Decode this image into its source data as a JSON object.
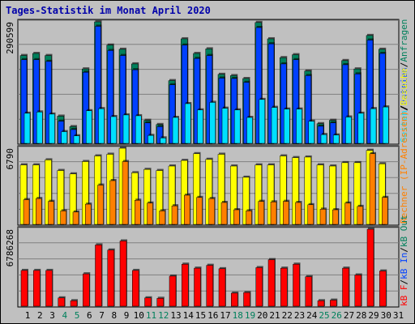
{
  "title": "Tages-Statistik im Monat April 2020",
  "legend": {
    "hits": "Anfragen",
    "files": "Dateien",
    "pages": "Seiten",
    "visits": "Besuche",
    "sites": "Rechner (IP-Adressen)",
    "kb_out": "kB Out",
    "kb_in": "kB In",
    "kb_f": "kB F",
    "sep": "/"
  },
  "colors": {
    "bg": "#c0c0c0",
    "grid": "#808080",
    "hits": "#00805c",
    "files": "#0040ff",
    "pages": "#00e0ff",
    "visits": "#ffff00",
    "sites": "#ff8000",
    "kb": "#ff0000",
    "title": "#0000aa",
    "weekend": "#00805c"
  },
  "chart_data": [
    {
      "type": "bar",
      "panel": "top",
      "ymax_label": "290599",
      "ymax": 290599,
      "x": [
        "1",
        "2",
        "3",
        "4",
        "5",
        "6",
        "7",
        "8",
        "9",
        "10",
        "11",
        "12",
        "13",
        "14",
        "15",
        "16",
        "17",
        "18",
        "19",
        "20",
        "21",
        "22",
        "23",
        "24",
        "25",
        "26",
        "27",
        "28",
        "29",
        "30",
        "31"
      ],
      "series": [
        {
          "name": "Anfragen",
          "values": [
            210000,
            215000,
            210000,
            65000,
            40000,
            178000,
            290599,
            235000,
            225000,
            190000,
            55000,
            45000,
            150000,
            250000,
            215000,
            226000,
            165000,
            162000,
            155000,
            289000,
            250000,
            205000,
            212000,
            173000,
            47000,
            55000,
            198000,
            178000,
            258000,
            225000,
            0
          ]
        },
        {
          "name": "Dateien",
          "values": [
            200000,
            200000,
            196000,
            53000,
            33000,
            170000,
            280000,
            222000,
            210000,
            176000,
            49000,
            40000,
            140000,
            235000,
            203000,
            210000,
            156000,
            155000,
            146000,
            277000,
            238000,
            190000,
            200000,
            162000,
            41000,
            49000,
            188000,
            166000,
            247000,
            215000,
            0
          ]
        },
        {
          "name": "Seiten",
          "values": [
            72000,
            75000,
            70000,
            28000,
            18000,
            78000,
            83000,
            64000,
            68000,
            66000,
            19000,
            13000,
            62000,
            95000,
            80000,
            98000,
            84000,
            80000,
            62000,
            105000,
            86000,
            82000,
            82000,
            53000,
            21000,
            20000,
            63000,
            72000,
            83000,
            87000,
            0
          ]
        }
      ]
    },
    {
      "type": "bar",
      "panel": "middle",
      "ymax_label": "6790",
      "ymax": 6790,
      "x": [
        "1",
        "2",
        "3",
        "4",
        "5",
        "6",
        "7",
        "8",
        "9",
        "10",
        "11",
        "12",
        "13",
        "14",
        "15",
        "16",
        "17",
        "18",
        "19",
        "20",
        "21",
        "22",
        "23",
        "24",
        "25",
        "26",
        "27",
        "28",
        "29",
        "30",
        "31"
      ],
      "series": [
        {
          "name": "Besuche",
          "values": [
            5300,
            5300,
            5750,
            4800,
            4500,
            5600,
            6100,
            6250,
            6790,
            4600,
            4900,
            4800,
            5200,
            5700,
            6300,
            5800,
            6250,
            5200,
            4200,
            5300,
            5300,
            6100,
            5950,
            6000,
            5300,
            5200,
            5500,
            5500,
            6600,
            5400,
            0
          ]
        },
        {
          "name": "Rechner (IP-Adressen)",
          "values": [
            2200,
            2300,
            2050,
            1200,
            1100,
            1800,
            3500,
            3900,
            5600,
            2150,
            1900,
            1200,
            1650,
            2600,
            2400,
            2300,
            1950,
            1300,
            1200,
            2050,
            2000,
            2050,
            1950,
            1750,
            1350,
            1300,
            1900,
            1600,
            6300,
            2400,
            0
          ]
        }
      ]
    },
    {
      "type": "bar",
      "panel": "bottom",
      "ymax_label": "6786268",
      "ymax": 6786268,
      "x": [
        "1",
        "2",
        "3",
        "4",
        "5",
        "6",
        "7",
        "8",
        "9",
        "10",
        "11",
        "12",
        "13",
        "14",
        "15",
        "16",
        "17",
        "18",
        "19",
        "20",
        "21",
        "22",
        "23",
        "24",
        "25",
        "26",
        "27",
        "28",
        "29",
        "30",
        "31"
      ],
      "series": [
        {
          "name": "kB F",
          "values": [
            3150000,
            3150000,
            3150000,
            730000,
            480000,
            2850000,
            5400000,
            4950000,
            5750000,
            3150000,
            730000,
            690000,
            2650000,
            3700000,
            3350000,
            3600000,
            3300000,
            1150000,
            1200000,
            3400000,
            4100000,
            3350000,
            3700000,
            2600000,
            480000,
            530000,
            3350000,
            2750000,
            6786268,
            3100000,
            0
          ]
        }
      ]
    }
  ],
  "x_labels": {
    "days": [
      "1",
      "2",
      "3",
      "4",
      "5",
      "6",
      "7",
      "8",
      "9",
      "10",
      "11",
      "12",
      "13",
      "14",
      "15",
      "16",
      "17",
      "18",
      "19",
      "20",
      "21",
      "22",
      "23",
      "24",
      "25",
      "26",
      "27",
      "28",
      "29",
      "30",
      "31"
    ],
    "weekend": [
      4,
      5,
      11,
      12,
      18,
      19,
      25,
      26
    ]
  }
}
